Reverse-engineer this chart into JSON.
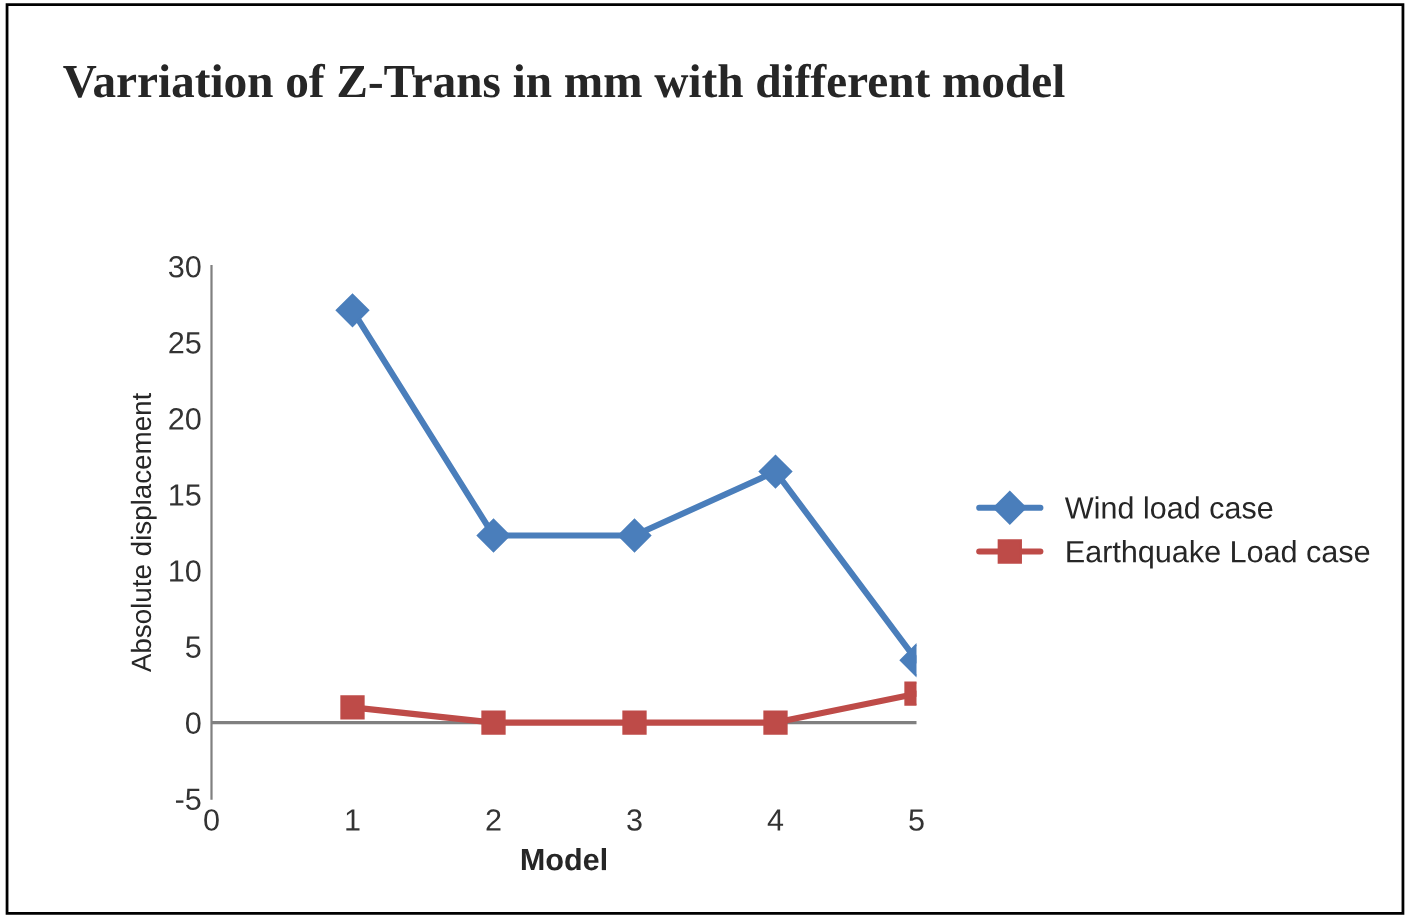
{
  "chart_data": {
    "type": "line",
    "title": "Varriation of Z-Trans in mm with different model",
    "xlabel": "Model",
    "ylabel": "Absolute displacement",
    "x": [
      1,
      2,
      3,
      4,
      5
    ],
    "series": [
      {
        "name": "Wind load case",
        "color": "#4a7ebb",
        "marker": "diamond",
        "values": [
          27.1,
          12.3,
          12.3,
          16.5,
          4.1
        ]
      },
      {
        "name": "Earthquake Load case",
        "color": "#be4b48",
        "marker": "square",
        "values": [
          1,
          0,
          0,
          0,
          1.9
        ]
      }
    ],
    "xlim": [
      0,
      5
    ],
    "xticks": [
      0,
      1,
      2,
      3,
      4,
      5
    ],
    "ylim": [
      -5,
      30
    ],
    "yticks": [
      -5,
      0,
      5,
      10,
      15,
      20,
      25,
      30
    ],
    "ref_lines": [
      {
        "axis": "y",
        "value": 0,
        "color": "#808080"
      }
    ],
    "grid": false,
    "legend": "right",
    "line_style": "solid"
  }
}
